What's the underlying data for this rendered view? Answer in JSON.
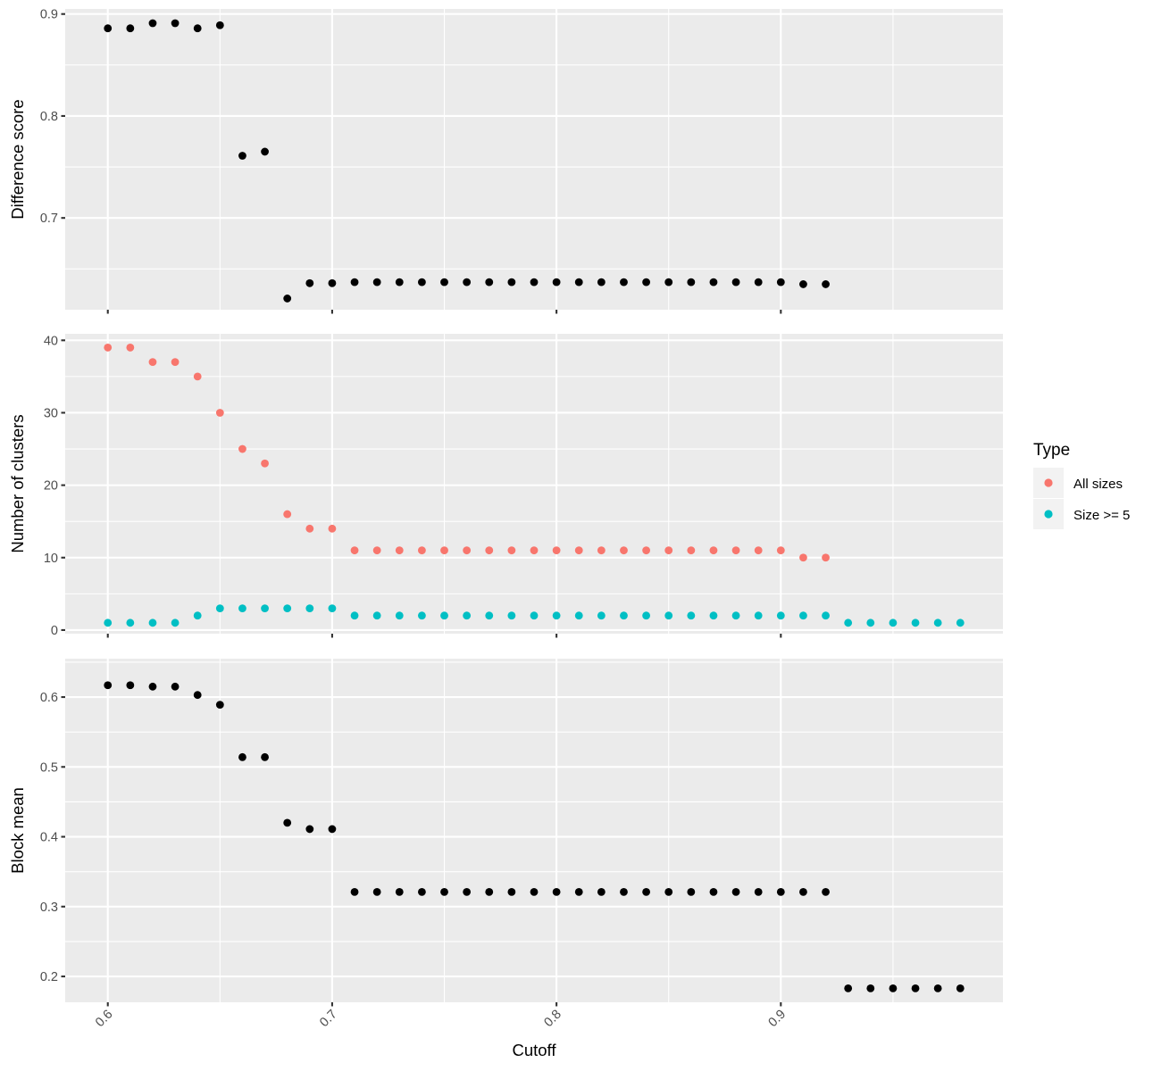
{
  "chart_data": [
    {
      "type": "scatter",
      "panel": "top",
      "xlabel": "",
      "ylabel": "Difference score",
      "xlim": [
        0.581,
        0.999
      ],
      "ylim": [
        0.61,
        0.905
      ],
      "x_ticks": [
        0.6,
        0.7,
        0.8,
        0.9
      ],
      "x_tick_labels": [
        "",
        "",
        "",
        ""
      ],
      "y_ticks": [
        0.7,
        0.8,
        0.9
      ],
      "y_tick_labels": [
        "0.7",
        "0.8",
        "0.9"
      ],
      "grid": true,
      "series": [
        {
          "color": "#000000",
          "x": [
            0.6,
            0.61,
            0.62,
            0.63,
            0.64,
            0.65,
            0.66,
            0.67,
            0.68,
            0.69,
            0.7,
            0.71,
            0.72,
            0.73,
            0.74,
            0.75,
            0.76,
            0.77,
            0.78,
            0.79,
            0.8,
            0.81,
            0.82,
            0.83,
            0.84,
            0.85,
            0.86,
            0.87,
            0.88,
            0.89,
            0.9,
            0.91,
            0.92
          ],
          "y": [
            0.886,
            0.886,
            0.891,
            0.891,
            0.886,
            0.889,
            0.761,
            0.765,
            0.621,
            0.636,
            0.636,
            0.637,
            0.637,
            0.637,
            0.637,
            0.637,
            0.637,
            0.637,
            0.637,
            0.637,
            0.637,
            0.637,
            0.637,
            0.637,
            0.637,
            0.637,
            0.637,
            0.637,
            0.637,
            0.637,
            0.637,
            0.635,
            0.635
          ]
        }
      ]
    },
    {
      "type": "scatter",
      "panel": "middle",
      "xlabel": "",
      "ylabel": "Number of clusters",
      "xlim": [
        0.581,
        0.999
      ],
      "ylim": [
        -0.5,
        40.9
      ],
      "x_ticks": [
        0.6,
        0.7,
        0.8,
        0.9
      ],
      "x_tick_labels": [
        "",
        "",
        "",
        ""
      ],
      "y_ticks": [
        0,
        10,
        20,
        30,
        40
      ],
      "y_tick_labels": [
        "0",
        "10",
        "20",
        "30",
        "40"
      ],
      "grid": true,
      "series": [
        {
          "name": "All sizes",
          "color": "#F8766D",
          "x": [
            0.6,
            0.61,
            0.62,
            0.63,
            0.64,
            0.65,
            0.66,
            0.67,
            0.68,
            0.69,
            0.7,
            0.71,
            0.72,
            0.73,
            0.74,
            0.75,
            0.76,
            0.77,
            0.78,
            0.79,
            0.8,
            0.81,
            0.82,
            0.83,
            0.84,
            0.85,
            0.86,
            0.87,
            0.88,
            0.89,
            0.9,
            0.91,
            0.92
          ],
          "y": [
            39,
            39,
            37,
            37,
            35,
            30,
            25,
            23,
            16,
            14,
            14,
            11,
            11,
            11,
            11,
            11,
            11,
            11,
            11,
            11,
            11,
            11,
            11,
            11,
            11,
            11,
            11,
            11,
            11,
            11,
            11,
            10,
            10
          ]
        },
        {
          "name": "Size >= 5",
          "color": "#00BFC4",
          "x": [
            0.6,
            0.61,
            0.62,
            0.63,
            0.64,
            0.65,
            0.66,
            0.67,
            0.68,
            0.69,
            0.7,
            0.71,
            0.72,
            0.73,
            0.74,
            0.75,
            0.76,
            0.77,
            0.78,
            0.79,
            0.8,
            0.81,
            0.82,
            0.83,
            0.84,
            0.85,
            0.86,
            0.87,
            0.88,
            0.89,
            0.9,
            0.91,
            0.92,
            0.93,
            0.94,
            0.95,
            0.96,
            0.97,
            0.98
          ],
          "y": [
            1,
            1,
            1,
            1,
            2,
            3,
            3,
            3,
            3,
            3,
            3,
            2,
            2,
            2,
            2,
            2,
            2,
            2,
            2,
            2,
            2,
            2,
            2,
            2,
            2,
            2,
            2,
            2,
            2,
            2,
            2,
            2,
            2,
            1,
            1,
            1,
            1,
            1,
            1
          ]
        }
      ]
    },
    {
      "type": "scatter",
      "panel": "bottom",
      "xlabel": "Cutoff",
      "ylabel": "Block mean",
      "xlim": [
        0.581,
        0.999
      ],
      "ylim": [
        0.163,
        0.655
      ],
      "x_ticks": [
        0.6,
        0.7,
        0.8,
        0.9
      ],
      "x_tick_labels": [
        "0.6",
        "0.7",
        "0.8",
        "0.9"
      ],
      "y_ticks": [
        0.2,
        0.3,
        0.4,
        0.5,
        0.6
      ],
      "y_tick_labels": [
        "0.2",
        "0.3",
        "0.4",
        "0.5",
        "0.6"
      ],
      "grid": true,
      "series": [
        {
          "color": "#000000",
          "x": [
            0.6,
            0.61,
            0.62,
            0.63,
            0.64,
            0.65,
            0.66,
            0.67,
            0.68,
            0.69,
            0.7,
            0.71,
            0.72,
            0.73,
            0.74,
            0.75,
            0.76,
            0.77,
            0.78,
            0.79,
            0.8,
            0.81,
            0.82,
            0.83,
            0.84,
            0.85,
            0.86,
            0.87,
            0.88,
            0.89,
            0.9,
            0.91,
            0.92,
            0.93,
            0.94,
            0.95,
            0.96,
            0.97,
            0.98
          ],
          "y": [
            0.617,
            0.617,
            0.615,
            0.615,
            0.603,
            0.589,
            0.514,
            0.514,
            0.42,
            0.411,
            0.411,
            0.321,
            0.321,
            0.321,
            0.321,
            0.321,
            0.321,
            0.321,
            0.321,
            0.321,
            0.321,
            0.321,
            0.321,
            0.321,
            0.321,
            0.321,
            0.321,
            0.321,
            0.321,
            0.321,
            0.321,
            0.321,
            0.321,
            0.183,
            0.183,
            0.183,
            0.183,
            0.183,
            0.183
          ]
        }
      ]
    }
  ],
  "legend": {
    "title": "Type",
    "placement": "right",
    "items": [
      {
        "label": "All sizes",
        "color": "#F8766D"
      },
      {
        "label": "Size >= 5",
        "color": "#00BFC4"
      }
    ]
  }
}
